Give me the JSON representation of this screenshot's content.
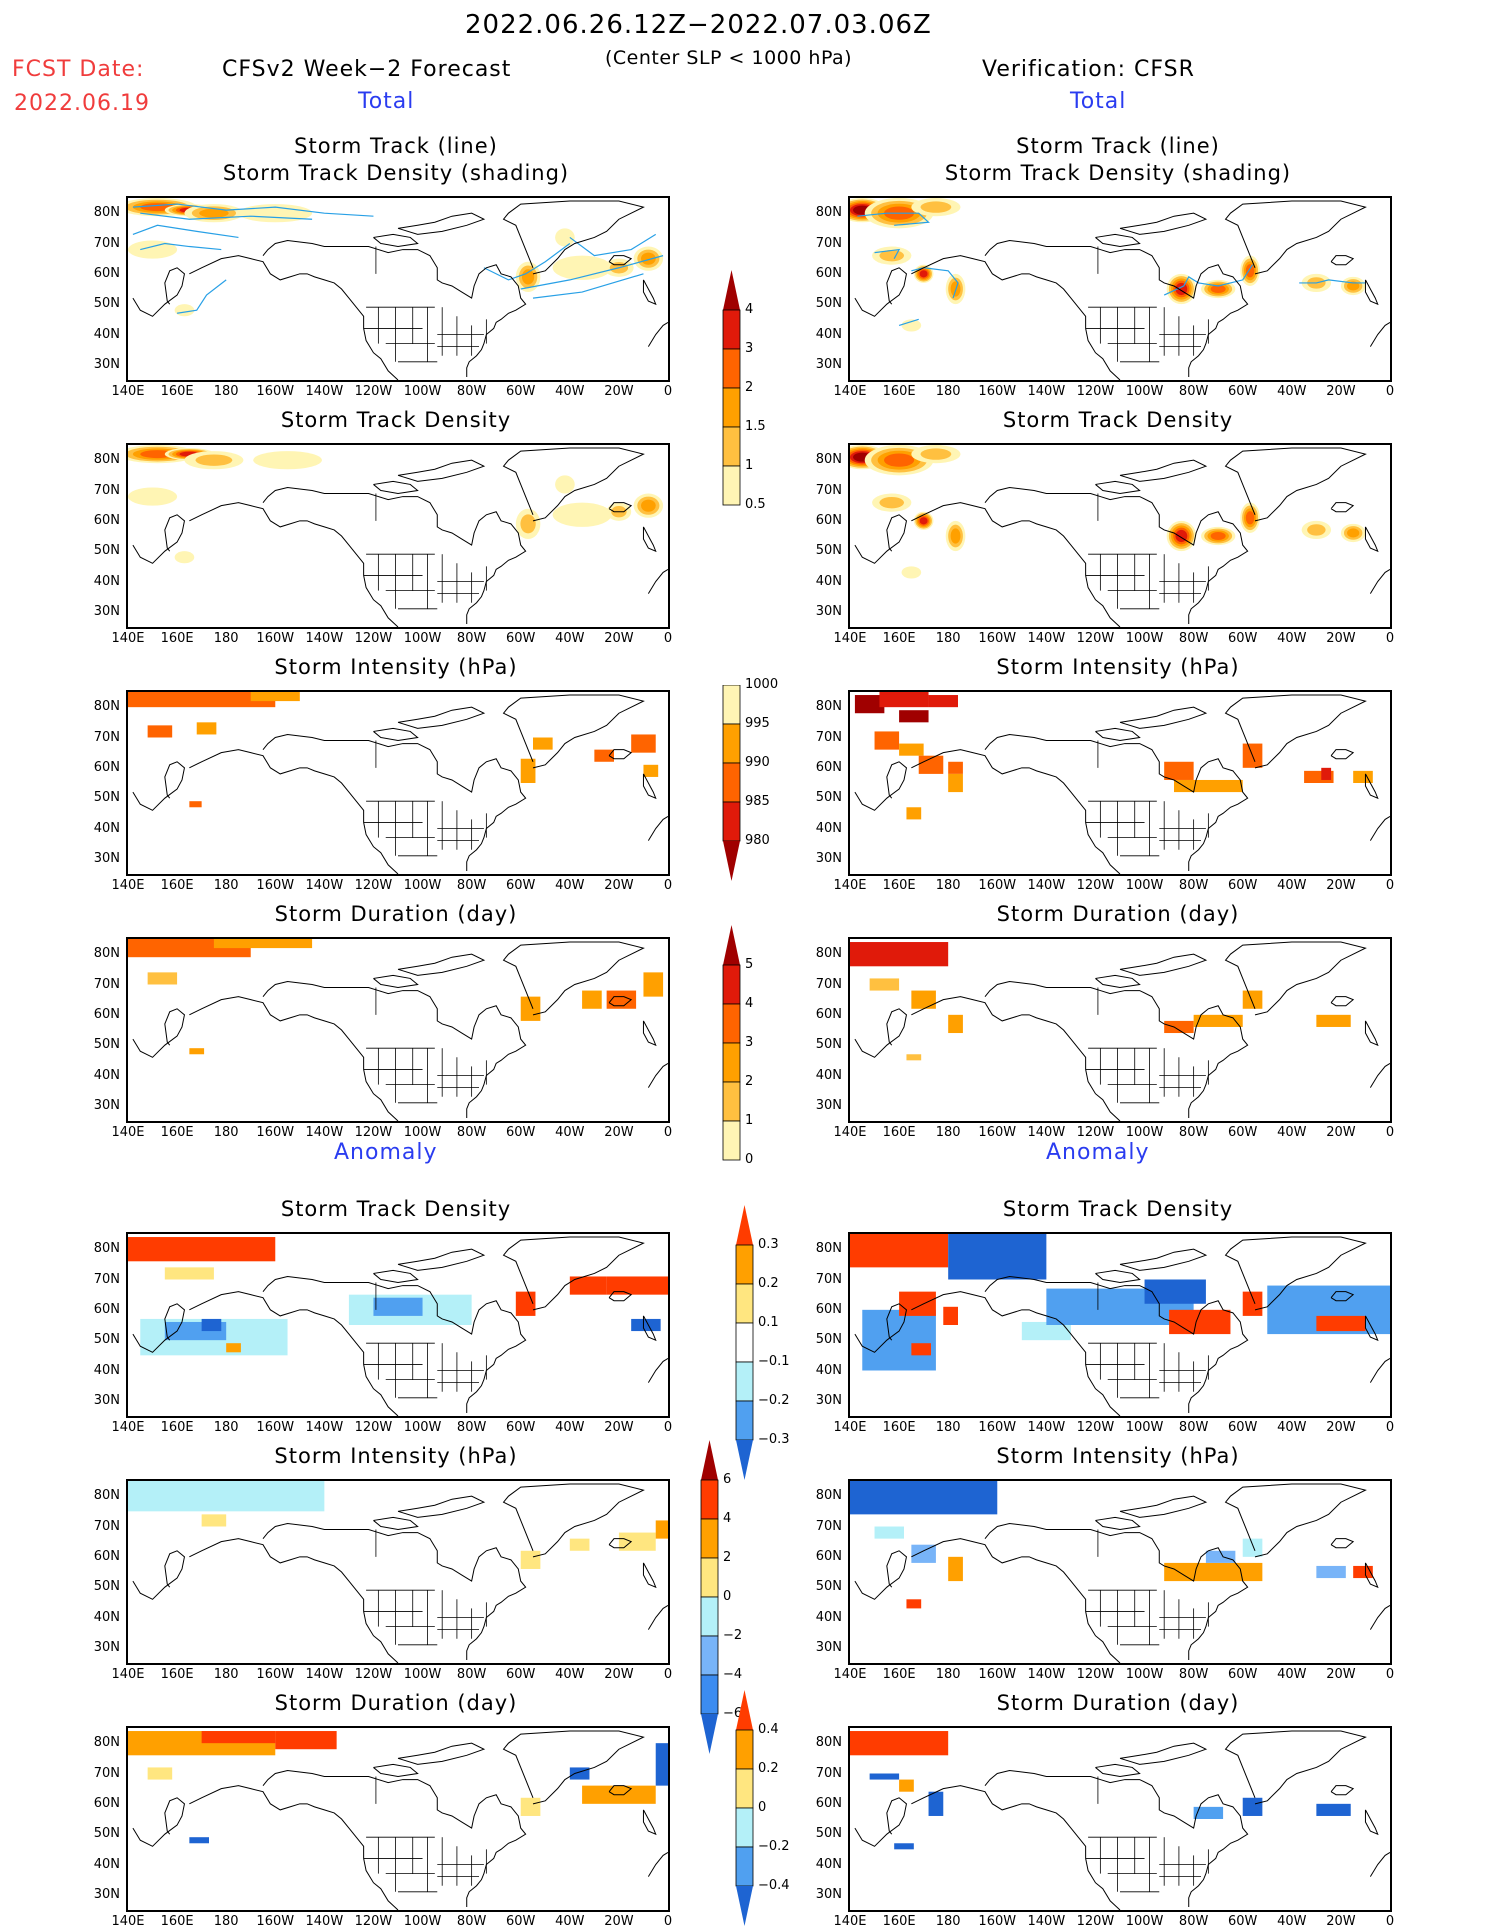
{
  "header": {
    "period": "2022.06.26.12Z−2022.07.03.06Z",
    "criterion": "(Center SLP < 1000 hPa)",
    "fcst_label": "FCST Date:",
    "fcst_date": "2022.06.19",
    "left_title": "CFSv2 Week−2 Forecast",
    "right_title": "Verification: CFSR",
    "total_label": "Total",
    "anomaly_label": "Anomaly"
  },
  "axes": {
    "x_ticks": [
      "140E",
      "160E",
      "180",
      "160W",
      "140W",
      "120W",
      "100W",
      "80W",
      "60W",
      "40W",
      "20W",
      "0"
    ],
    "y_ticks": [
      "80N",
      "70N",
      "60N",
      "50N",
      "40N",
      "30N"
    ],
    "lon_range": [
      140,
      360
    ],
    "lat_range": [
      25,
      85
    ]
  },
  "chart_data": [
    {
      "type": "heatmap",
      "panel": "forecast-total-track",
      "title_line1": "Storm Track (line)",
      "title_line2": "Storm Track Density (shading)",
      "field": "total_density",
      "tracks": true,
      "blobs": [
        [
          152,
          82,
          16,
          3,
          2.2
        ],
        [
          165,
          81,
          10,
          2,
          3.2
        ],
        [
          175,
          80,
          12,
          3,
          1.5
        ],
        [
          200,
          80,
          15,
          3,
          0.8
        ],
        [
          150,
          68,
          10,
          3,
          0.8
        ],
        [
          163,
          48,
          4,
          2,
          0.7
        ],
        [
          303,
          59,
          5,
          5,
          1.5
        ],
        [
          318,
          72,
          4,
          3,
          0.7
        ],
        [
          325,
          62,
          12,
          4,
          0.9
        ],
        [
          340,
          62,
          6,
          3,
          1.2
        ],
        [
          352,
          65,
          6,
          4,
          1.6
        ]
      ]
    },
    {
      "type": "heatmap",
      "panel": "verification-total-track",
      "title_line1": "Storm Track (line)",
      "title_line2": "Storm Track Density (shading)",
      "field": "total_density",
      "tracks": true,
      "blobs": [
        [
          145,
          81,
          10,
          4,
          4.5
        ],
        [
          160,
          80,
          14,
          5,
          2.5
        ],
        [
          175,
          82,
          10,
          3,
          1.2
        ],
        [
          157,
          66,
          8,
          3,
          1.4
        ],
        [
          170,
          60,
          4,
          3,
          3.2
        ],
        [
          183,
          55,
          4,
          5,
          1.5
        ],
        [
          165,
          43,
          4,
          2,
          0.8
        ],
        [
          275,
          55,
          6,
          5,
          3.5
        ],
        [
          290,
          55,
          7,
          3,
          2.2
        ],
        [
          303,
          61,
          4,
          5,
          2.2
        ],
        [
          330,
          57,
          6,
          3,
          1.2
        ],
        [
          345,
          56,
          5,
          3,
          1.8
        ]
      ]
    },
    {
      "type": "heatmap",
      "panel": "forecast-total-density",
      "title": "Storm Track Density",
      "field": "total_density",
      "blobs": [
        [
          152,
          82,
          16,
          3,
          2.0
        ],
        [
          165,
          82,
          10,
          2,
          3.0
        ],
        [
          175,
          80,
          12,
          3,
          1.2
        ],
        [
          205,
          80,
          14,
          3,
          0.7
        ],
        [
          150,
          68,
          10,
          3,
          0.8
        ],
        [
          163,
          48,
          4,
          2,
          0.6
        ],
        [
          303,
          59,
          5,
          5,
          1.3
        ],
        [
          318,
          72,
          4,
          3,
          0.7
        ],
        [
          325,
          62,
          12,
          4,
          0.8
        ],
        [
          340,
          63,
          5,
          3,
          1.1
        ],
        [
          352,
          65,
          6,
          4,
          1.5
        ]
      ]
    },
    {
      "type": "heatmap",
      "panel": "verification-total-density",
      "title": "Storm Track Density",
      "field": "total_density",
      "blobs": [
        [
          145,
          81,
          10,
          4,
          4.5
        ],
        [
          160,
          80,
          14,
          5,
          2.5
        ],
        [
          175,
          82,
          10,
          3,
          1.2
        ],
        [
          157,
          66,
          8,
          3,
          1.4
        ],
        [
          170,
          60,
          4,
          3,
          3.2
        ],
        [
          183,
          55,
          4,
          5,
          1.5
        ],
        [
          165,
          43,
          4,
          2,
          0.8
        ],
        [
          275,
          55,
          6,
          5,
          3.5
        ],
        [
          290,
          55,
          7,
          3,
          2.2
        ],
        [
          303,
          61,
          4,
          5,
          2.2
        ],
        [
          330,
          57,
          6,
          3,
          1.2
        ],
        [
          345,
          56,
          5,
          3,
          1.8
        ]
      ]
    },
    {
      "type": "heatmap",
      "panel": "forecast-total-intensity",
      "title": "Storm Intensity (hPa)",
      "field": "intensity",
      "grid": true,
      "cells": [
        [
          140,
          80,
          60,
          6,
          992
        ],
        [
          190,
          82,
          20,
          4,
          996
        ],
        [
          148,
          70,
          10,
          4,
          991
        ],
        [
          168,
          71,
          8,
          4,
          997
        ],
        [
          165,
          47,
          5,
          2,
          991
        ],
        [
          300,
          55,
          6,
          8,
          997
        ],
        [
          305,
          66,
          8,
          4,
          997
        ],
        [
          330,
          62,
          8,
          4,
          993
        ],
        [
          345,
          65,
          10,
          6,
          994
        ],
        [
          350,
          57,
          6,
          4,
          997
        ]
      ]
    },
    {
      "type": "heatmap",
      "panel": "verification-total-intensity",
      "title": "Storm Intensity (hPa)",
      "field": "intensity",
      "grid": true,
      "cells": [
        [
          142,
          78,
          12,
          6,
          984
        ],
        [
          152,
          80,
          20,
          6,
          987
        ],
        [
          172,
          80,
          12,
          4,
          986
        ],
        [
          160,
          75,
          12,
          4,
          983
        ],
        [
          150,
          66,
          10,
          6,
          992
        ],
        [
          160,
          64,
          10,
          4,
          997
        ],
        [
          168,
          58,
          10,
          6,
          993
        ],
        [
          180,
          58,
          6,
          4,
          993
        ],
        [
          180,
          52,
          6,
          6,
          997
        ],
        [
          163,
          43,
          6,
          4,
          997
        ],
        [
          268,
          56,
          12,
          6,
          993
        ],
        [
          272,
          52,
          28,
          4,
          997
        ],
        [
          300,
          60,
          8,
          8,
          993
        ],
        [
          325,
          55,
          12,
          4,
          993
        ],
        [
          332,
          56,
          4,
          4,
          989
        ],
        [
          345,
          55,
          8,
          4,
          997
        ]
      ]
    },
    {
      "type": "heatmap",
      "panel": "forecast-total-duration",
      "title": "Storm Duration (day)",
      "field": "duration",
      "grid": true,
      "cells": [
        [
          140,
          79,
          50,
          6,
          3.5
        ],
        [
          175,
          82,
          40,
          4,
          2.5
        ],
        [
          148,
          70,
          12,
          4,
          1.5
        ],
        [
          165,
          47,
          6,
          2,
          2.5
        ],
        [
          300,
          58,
          8,
          8,
          2.5
        ],
        [
          325,
          62,
          8,
          6,
          2.5
        ],
        [
          335,
          62,
          12,
          6,
          3.5
        ],
        [
          350,
          66,
          8,
          8,
          2.5
        ]
      ]
    },
    {
      "type": "heatmap",
      "panel": "verification-total-duration",
      "title": "Storm Duration (day)",
      "field": "duration",
      "grid": true,
      "cells": [
        [
          140,
          76,
          40,
          8,
          4.5
        ],
        [
          148,
          68,
          12,
          4,
          1.5
        ],
        [
          165,
          62,
          10,
          6,
          2.5
        ],
        [
          180,
          54,
          6,
          6,
          2.5
        ],
        [
          163,
          45,
          6,
          2,
          1.5
        ],
        [
          268,
          54,
          12,
          4,
          3.5
        ],
        [
          280,
          56,
          20,
          4,
          2.5
        ],
        [
          300,
          62,
          8,
          6,
          2.5
        ],
        [
          330,
          56,
          14,
          4,
          2.5
        ]
      ]
    },
    {
      "type": "heatmap",
      "panel": "forecast-anomaly-density",
      "title": "Storm Track Density",
      "field": "density_anom",
      "grid": true,
      "cells": [
        [
          140,
          76,
          60,
          8,
          0.35
        ],
        [
          155,
          70,
          20,
          4,
          0.15
        ],
        [
          145,
          45,
          60,
          12,
          -0.15
        ],
        [
          155,
          50,
          25,
          6,
          -0.25
        ],
        [
          170,
          53,
          8,
          4,
          -0.35
        ],
        [
          180,
          46,
          6,
          3,
          0.25
        ],
        [
          230,
          55,
          50,
          10,
          -0.15
        ],
        [
          240,
          58,
          20,
          6,
          -0.25
        ],
        [
          298,
          58,
          8,
          8,
          0.35
        ],
        [
          320,
          65,
          15,
          6,
          0.35
        ],
        [
          335,
          65,
          25,
          6,
          0.35
        ],
        [
          345,
          53,
          12,
          4,
          -0.35
        ]
      ]
    },
    {
      "type": "heatmap",
      "panel": "verification-anomaly-density",
      "title": "Storm Track Density",
      "field": "density_anom",
      "grid": true,
      "cells": [
        [
          140,
          74,
          40,
          11,
          0.35
        ],
        [
          180,
          70,
          40,
          15,
          -0.35
        ],
        [
          145,
          40,
          30,
          20,
          -0.25
        ],
        [
          160,
          58,
          15,
          8,
          0.35
        ],
        [
          178,
          55,
          6,
          6,
          0.35
        ],
        [
          165,
          45,
          8,
          4,
          0.35
        ],
        [
          210,
          50,
          20,
          6,
          -0.15
        ],
        [
          220,
          55,
          60,
          12,
          -0.25
        ],
        [
          260,
          62,
          25,
          8,
          -0.35
        ],
        [
          270,
          52,
          25,
          8,
          0.35
        ],
        [
          300,
          58,
          8,
          8,
          0.35
        ],
        [
          310,
          52,
          50,
          16,
          -0.25
        ],
        [
          330,
          53,
          20,
          5,
          0.35
        ]
      ]
    },
    {
      "type": "heatmap",
      "panel": "forecast-anomaly-intensity",
      "title": "Storm Intensity (hPa)",
      "field": "intensity_anom",
      "grid": true,
      "cells": [
        [
          140,
          75,
          80,
          10,
          -1
        ],
        [
          170,
          70,
          10,
          4,
          1
        ],
        [
          300,
          56,
          8,
          6,
          1
        ],
        [
          320,
          62,
          8,
          4,
          1
        ],
        [
          340,
          62,
          15,
          6,
          1
        ],
        [
          355,
          66,
          5,
          6,
          3
        ]
      ]
    },
    {
      "type": "heatmap",
      "panel": "verification-anomaly-intensity",
      "title": "Storm Intensity (hPa)",
      "field": "intensity_anom",
      "grid": true,
      "cells": [
        [
          140,
          74,
          60,
          12,
          -7
        ],
        [
          150,
          66,
          12,
          4,
          -1
        ],
        [
          165,
          58,
          10,
          6,
          -3
        ],
        [
          180,
          52,
          6,
          8,
          3
        ],
        [
          163,
          43,
          6,
          3,
          5
        ],
        [
          268,
          52,
          40,
          6,
          3
        ],
        [
          285,
          58,
          12,
          4,
          -3
        ],
        [
          300,
          60,
          8,
          6,
          -1
        ],
        [
          330,
          53,
          12,
          4,
          -3
        ],
        [
          345,
          53,
          8,
          4,
          5
        ]
      ]
    },
    {
      "type": "heatmap",
      "panel": "forecast-anomaly-duration",
      "title": "Storm Duration (day)",
      "field": "duration_anom",
      "grid": true,
      "cells": [
        [
          140,
          76,
          60,
          8,
          0.3
        ],
        [
          170,
          80,
          30,
          4,
          0.5
        ],
        [
          200,
          78,
          25,
          6,
          0.5
        ],
        [
          148,
          68,
          10,
          4,
          0.1
        ],
        [
          165,
          47,
          8,
          2,
          -0.5
        ],
        [
          300,
          56,
          8,
          6,
          0.1
        ],
        [
          320,
          68,
          8,
          4,
          -0.5
        ],
        [
          325,
          60,
          30,
          6,
          0.3
        ],
        [
          355,
          66,
          5,
          14,
          -0.5
        ]
      ]
    },
    {
      "type": "heatmap",
      "panel": "verification-anomaly-duration",
      "title": "Storm Duration (day)",
      "field": "duration_anom",
      "grid": true,
      "cells": [
        [
          140,
          76,
          40,
          8,
          0.5
        ],
        [
          148,
          68,
          12,
          2,
          -0.5
        ],
        [
          160,
          64,
          6,
          4,
          0.3
        ],
        [
          172,
          56,
          6,
          8,
          -0.5
        ],
        [
          158,
          45,
          8,
          2,
          -0.5
        ],
        [
          280,
          55,
          12,
          4,
          -0.3
        ],
        [
          300,
          56,
          8,
          6,
          -0.5
        ],
        [
          330,
          56,
          14,
          4,
          -0.5
        ]
      ]
    }
  ],
  "colorbars": [
    {
      "name": "density",
      "labels": [
        "4",
        "3",
        "2",
        "1.5",
        "1",
        "0.5"
      ],
      "colors": [
        "#a00000",
        "#e01a0a",
        "#ff6400",
        "#ffa000",
        "#ffc040",
        "#fff5b4"
      ],
      "arrow": "top"
    },
    {
      "name": "intensity",
      "labels": [
        "1000",
        "995",
        "990",
        "985",
        "980"
      ],
      "colors": [
        "#fff5b4",
        "#ffa000",
        "#ff6400",
        "#e01a0a",
        "#a00000"
      ],
      "arrow": "bottom"
    },
    {
      "name": "duration",
      "labels": [
        "5",
        "4",
        "3",
        "2",
        "1",
        "0"
      ],
      "colors": [
        "#a00000",
        "#e01a0a",
        "#ff6400",
        "#ffa000",
        "#ffc040",
        "#fff5b4"
      ],
      "arrow": "top"
    },
    {
      "name": "density_anom",
      "labels": [
        "0.3",
        "0.2",
        "0.1",
        "−0.1",
        "−0.2",
        "−0.3"
      ],
      "colors": [
        "#ff3c00",
        "#ffa000",
        "#ffe680",
        "#ffffff",
        "#b4f0f8",
        "#50a0f0",
        "#1e64d2"
      ],
      "arrow": "both"
    },
    {
      "name": "intensity_anom",
      "labels": [
        "6",
        "4",
        "2",
        "0",
        "−2",
        "−4",
        "−6"
      ],
      "colors": [
        "#a00000",
        "#ff3c00",
        "#ffa000",
        "#ffe680",
        "#b4f0f8",
        "#78b4f8",
        "#3c8cf0",
        "#1e64d2"
      ],
      "arrow": "both"
    },
    {
      "name": "duration_anom",
      "labels": [
        "0.4",
        "0.2",
        "0",
        "−0.2",
        "−0.4"
      ],
      "colors": [
        "#ff3c00",
        "#ffa000",
        "#ffe680",
        "#b4f0f8",
        "#50a0f0",
        "#1e64d2"
      ],
      "arrow": "both"
    }
  ]
}
